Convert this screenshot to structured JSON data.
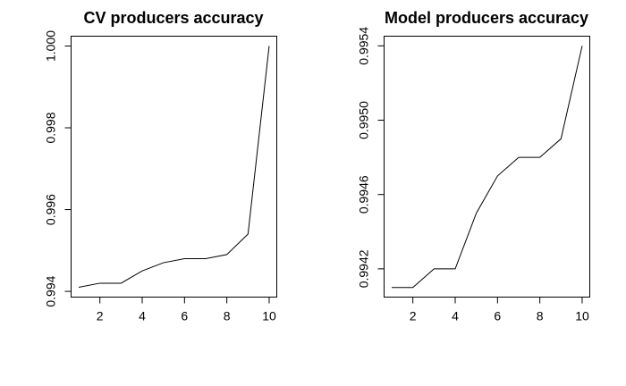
{
  "chart_data": [
    {
      "type": "line",
      "title": "CV producers accuracy",
      "xlabel": "",
      "ylabel": "",
      "x": [
        1,
        2,
        3,
        4,
        5,
        6,
        7,
        8,
        9,
        10
      ],
      "values": [
        0.9941,
        0.9942,
        0.9942,
        0.9945,
        0.9947,
        0.9948,
        0.9948,
        0.9949,
        0.9954,
        1.0
      ],
      "xlim": [
        0.64,
        10.36
      ],
      "ylim": [
        0.99386,
        1.00024
      ],
      "x_ticks": [
        2,
        4,
        6,
        8,
        10
      ],
      "x_tick_labels": [
        "2",
        "4",
        "6",
        "8",
        "10"
      ],
      "y_ticks": [
        0.994,
        0.996,
        0.998,
        1.0
      ],
      "y_tick_labels": [
        "0.994",
        "0.996",
        "0.998",
        "1.000"
      ],
      "grid": false,
      "legend": "none",
      "line_color": "#000000"
    },
    {
      "type": "line",
      "title": "Model producers accuracy",
      "xlabel": "",
      "ylabel": "",
      "x": [
        1,
        2,
        3,
        4,
        5,
        6,
        7,
        8,
        9,
        10
      ],
      "values": [
        0.9941,
        0.9941,
        0.9942,
        0.9942,
        0.9945,
        0.9947,
        0.9948,
        0.9948,
        0.9949,
        0.9954
      ],
      "xlim": [
        0.64,
        10.36
      ],
      "ylim": [
        0.994048,
        0.995452
      ],
      "x_ticks": [
        2,
        4,
        6,
        8,
        10
      ],
      "x_tick_labels": [
        "2",
        "4",
        "6",
        "8",
        "10"
      ],
      "y_ticks": [
        0.9942,
        0.9946,
        0.995,
        0.9954
      ],
      "y_tick_labels": [
        "0.9942",
        "0.9946",
        "0.9950",
        "0.9954"
      ],
      "grid": false,
      "legend": "none",
      "line_color": "#000000"
    }
  ]
}
